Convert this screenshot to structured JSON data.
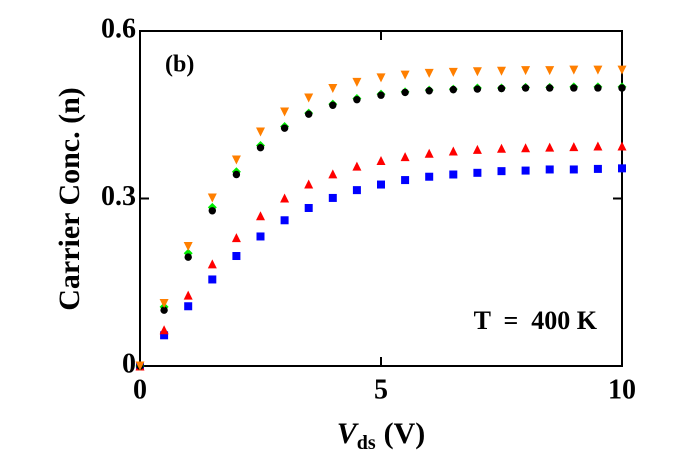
{
  "chart_data": {
    "type": "scatter",
    "y_label": "Carrier Conc. (n)",
    "x_label": {
      "symbol": "V",
      "subscript": "ds",
      "unit": "(V)"
    },
    "annotations": [
      "(b)",
      "T  =  400 K"
    ],
    "x": [
      0,
      0.5,
      1,
      1.5,
      2,
      2.5,
      3,
      3.5,
      4,
      4.5,
      5,
      5.5,
      6,
      6.5,
      7,
      7.5,
      8,
      8.5,
      9,
      9.5,
      10
    ],
    "series": [
      {
        "color": "#ff7f00",
        "marker": "triangle-down",
        "values": [
          0,
          0.112,
          0.214,
          0.301,
          0.369,
          0.419,
          0.455,
          0.48,
          0.497,
          0.508,
          0.516,
          0.521,
          0.524,
          0.526,
          0.527,
          0.528,
          0.529,
          0.529,
          0.53,
          0.53,
          0.53
        ]
      },
      {
        "color": "#000000",
        "marker": "circle",
        "values": [
          0,
          0.1,
          0.195,
          0.278,
          0.343,
          0.391,
          0.426,
          0.451,
          0.467,
          0.477,
          0.485,
          0.49,
          0.493,
          0.495,
          0.496,
          0.497,
          0.498,
          0.498,
          0.498,
          0.498,
          0.498
        ]
      },
      {
        "color": "#00ee00",
        "marker": "diamond",
        "values": [
          0,
          0.106,
          0.202,
          0.284,
          0.348,
          0.395,
          0.429,
          0.453,
          0.469,
          0.479,
          0.487,
          0.491,
          0.494,
          0.496,
          0.498,
          0.498,
          0.499,
          0.499,
          0.5,
          0.5,
          0.5
        ]
      },
      {
        "color": "#ff0000",
        "marker": "triangle-up",
        "values": [
          0,
          0.065,
          0.127,
          0.183,
          0.23,
          0.269,
          0.301,
          0.326,
          0.344,
          0.358,
          0.368,
          0.375,
          0.381,
          0.385,
          0.388,
          0.39,
          0.391,
          0.392,
          0.393,
          0.394,
          0.394
        ]
      },
      {
        "color": "#0000ff",
        "marker": "square",
        "values": [
          0,
          0.055,
          0.107,
          0.155,
          0.197,
          0.232,
          0.261,
          0.283,
          0.301,
          0.315,
          0.325,
          0.333,
          0.339,
          0.343,
          0.346,
          0.349,
          0.35,
          0.352,
          0.352,
          0.353,
          0.354
        ]
      }
    ],
    "xlim": [
      0,
      10
    ],
    "xticks": [
      0,
      5,
      10
    ],
    "ylim": [
      0,
      0.6
    ],
    "yticks": [
      0,
      0.3,
      0.6
    ]
  }
}
